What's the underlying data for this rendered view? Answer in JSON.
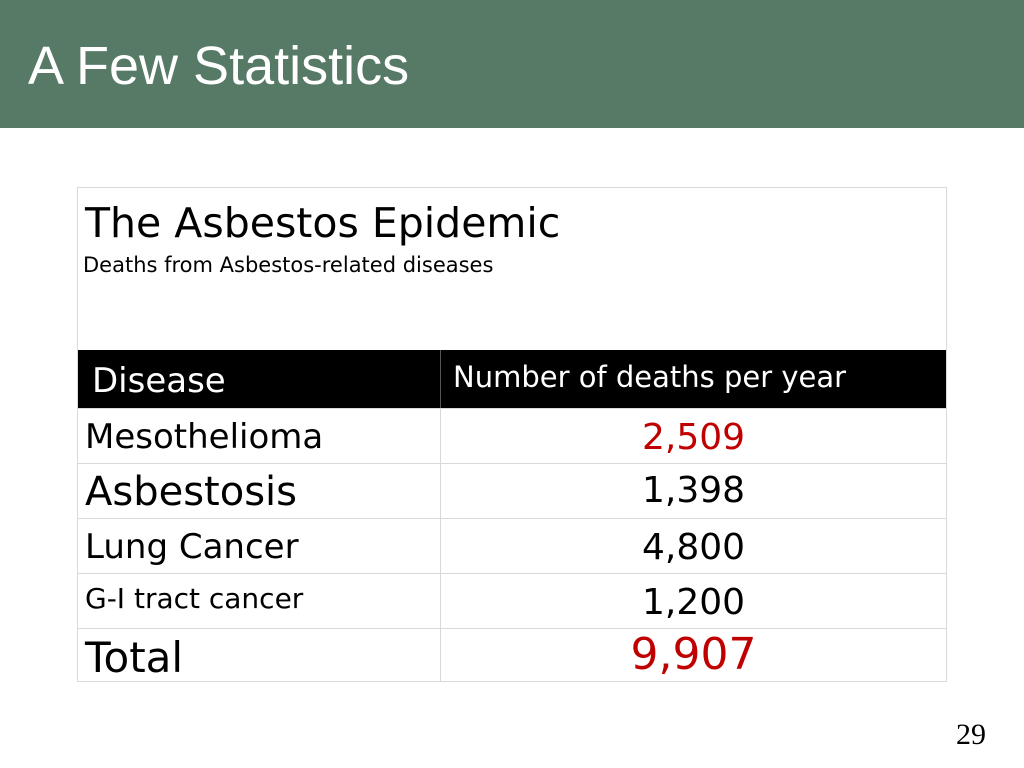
{
  "slide": {
    "title": "A Few Statistics",
    "page_number": "29"
  },
  "table": {
    "caption_title": "The Asbestos Epidemic",
    "caption_subtitle": "Deaths from Asbestos-related diseases",
    "headers": [
      "Disease",
      "Number of deaths per year"
    ],
    "rows": [
      {
        "disease": "Mesothelioma",
        "deaths": "2,509",
        "highlight_color": "#c00000"
      },
      {
        "disease": "Asbestosis",
        "deaths": "1,398",
        "highlight_color": "#000000"
      },
      {
        "disease": "Lung Cancer",
        "deaths": "4,800",
        "highlight_color": "#000000"
      },
      {
        "disease": "G-I tract cancer",
        "deaths": "1,200",
        "highlight_color": "#000000"
      },
      {
        "disease": "Total",
        "deaths": "9,907",
        "highlight_color": "#c00000"
      }
    ]
  },
  "colors": {
    "title_bar": "#567a65",
    "header_row": "#000000",
    "highlight_red": "#c00000"
  }
}
